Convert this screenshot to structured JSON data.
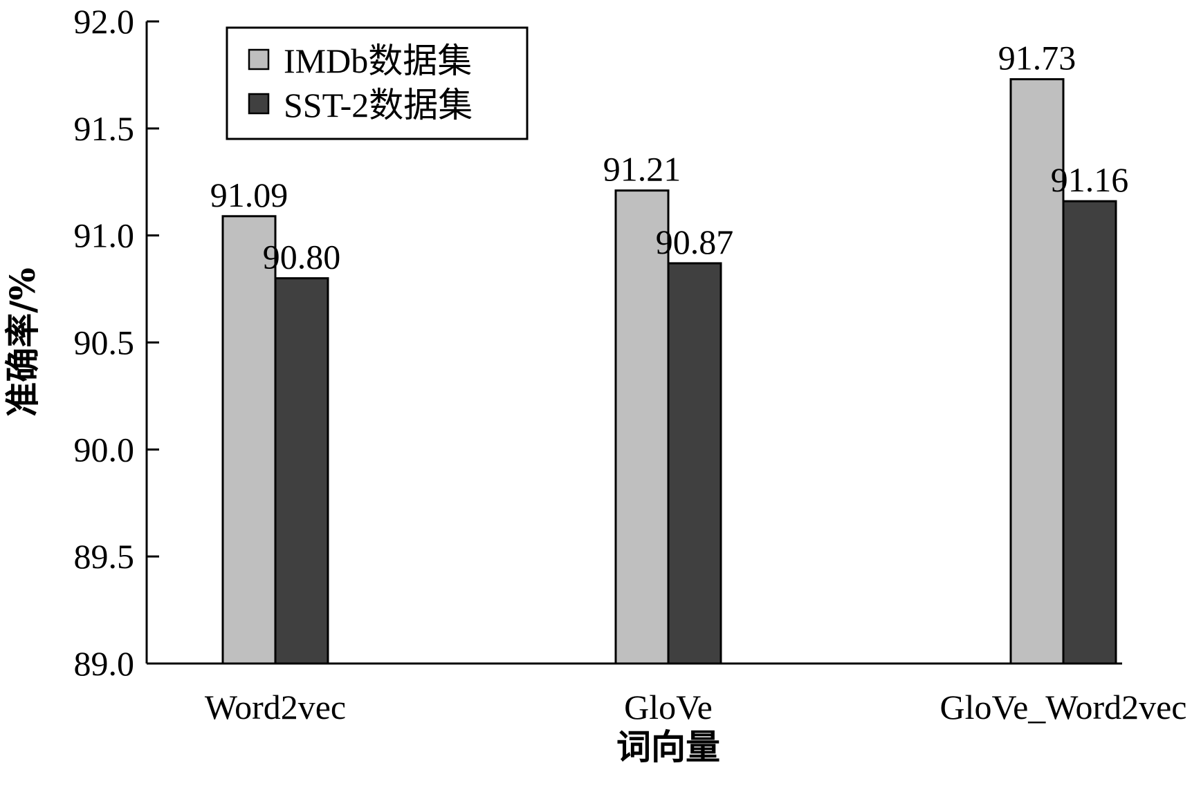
{
  "chart_data": {
    "type": "bar",
    "categories": [
      "Word2vec",
      "GloVe",
      "GloVe_Word2vec"
    ],
    "series": [
      {
        "name": "IMDb数据集",
        "values": [
          91.09,
          91.21,
          91.73
        ],
        "labels": [
          "91.09",
          "91.21",
          "91.73"
        ],
        "color": "#bfbfbf"
      },
      {
        "name": "SST-2数据集",
        "values": [
          90.8,
          90.87,
          91.16
        ],
        "labels": [
          "90.80",
          "90.87",
          "91.16"
        ],
        "color": "#404040"
      }
    ],
    "xlabel": "词向量",
    "ylabel": "准确率/%",
    "ylim": [
      89.0,
      92.0
    ],
    "yticks": [
      89.0,
      89.5,
      90.0,
      90.5,
      91.0,
      91.5,
      92.0
    ],
    "ytick_labels": [
      "89.0",
      "89.5",
      "90.0",
      "90.5",
      "91.0",
      "91.5",
      "92.0"
    ],
    "grid": false,
    "legend_position": "top-left"
  }
}
